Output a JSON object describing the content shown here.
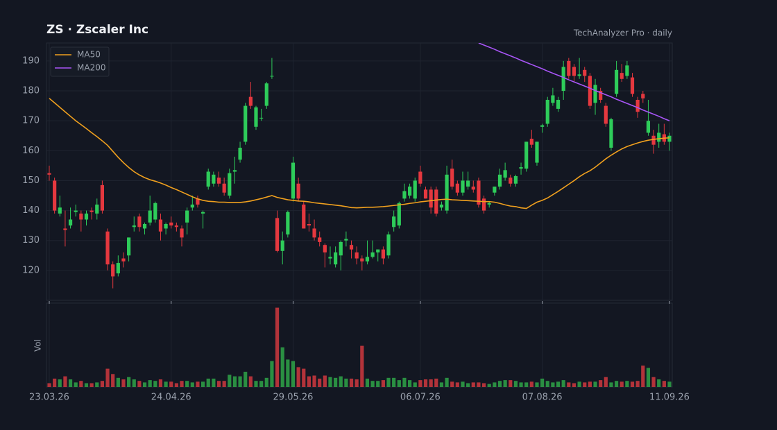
{
  "chart_data": {
    "type": "candlestick",
    "title": "ZS  ·  Zscaler Inc",
    "subtitle": "TechAnalyzer Pro · daily",
    "volume_label": "Vol",
    "categories": [
      "23.03.26",
      null,
      null,
      null,
      null,
      null,
      null,
      null,
      null,
      null,
      null,
      null,
      null,
      null,
      null,
      null,
      null,
      null,
      null,
      null,
      null,
      null,
      null,
      "24.04.26",
      null,
      null,
      null,
      null,
      null,
      null,
      null,
      null,
      null,
      null,
      null,
      null,
      null,
      null,
      null,
      null,
      null,
      null,
      null,
      null,
      null,
      null,
      "29.05.26",
      null,
      null,
      null,
      null,
      null,
      null,
      null,
      null,
      null,
      null,
      null,
      null,
      null,
      null,
      null,
      null,
      null,
      null,
      null,
      null,
      null,
      null,
      null,
      "06.07.26",
      null,
      null,
      null,
      null,
      null,
      null,
      null,
      null,
      null,
      null,
      null,
      null,
      null,
      null,
      null,
      null,
      null,
      null,
      null,
      null,
      null,
      null,
      "07.08.26",
      null,
      null,
      null,
      null,
      null,
      null,
      null,
      null,
      null,
      null,
      null,
      null,
      null,
      null,
      null,
      null,
      null,
      null,
      null,
      null,
      null,
      null,
      null,
      "11.09.26"
    ],
    "open": [
      152.5,
      150,
      139,
      134,
      135,
      139.5,
      139,
      137,
      140,
      139,
      148.5,
      133,
      122,
      119,
      124,
      125,
      134.5,
      138,
      134,
      136,
      137,
      137,
      134,
      136,
      135,
      134,
      136,
      141,
      144,
      139,
      148,
      149,
      151,
      149,
      145,
      153,
      157,
      163,
      178,
      168,
      171,
      175,
      185,
      137.5,
      126.5,
      132,
      144,
      149,
      142,
      135.5,
      134,
      131,
      128.5,
      124,
      122,
      125,
      130,
      128.5,
      126,
      124,
      123,
      124.5,
      126,
      127,
      125,
      134.5,
      135,
      144,
      145,
      144,
      153,
      147,
      147,
      147,
      141,
      140,
      154,
      149,
      146,
      148,
      148,
      150,
      144,
      142,
      146,
      148,
      151,
      151,
      149,
      154,
      154,
      164,
      156,
      168,
      169,
      176,
      174,
      180,
      190,
      188,
      185,
      187,
      185,
      176,
      180,
      175,
      161,
      179,
      186,
      185,
      184.5,
      177,
      179,
      166,
      165,
      163,
      165.5,
      163
    ],
    "high": [
      155,
      151,
      145,
      140,
      141,
      142,
      140,
      140,
      141,
      144,
      150,
      134,
      123,
      125,
      126,
      131,
      138,
      139,
      136,
      145,
      143,
      139,
      136,
      138,
      136,
      135,
      141,
      145,
      145,
      140,
      154,
      153,
      153,
      151,
      154,
      158,
      163,
      176,
      183,
      175,
      174,
      183,
      191,
      140,
      133,
      140,
      158,
      151,
      143,
      139,
      137,
      133,
      129,
      128,
      128,
      130,
      133,
      130,
      128,
      125,
      130,
      130,
      127,
      128,
      133,
      140,
      143,
      149,
      149,
      151,
      155,
      148,
      148,
      148,
      143,
      155,
      157,
      150,
      153,
      153,
      150,
      151,
      145,
      143,
      148,
      154,
      156,
      152,
      152,
      156,
      163,
      167,
      163,
      169,
      178,
      181,
      178,
      190,
      191,
      189,
      191,
      188,
      186,
      184,
      181,
      176,
      171,
      190,
      189,
      190,
      186,
      178,
      180,
      177,
      167,
      169,
      169,
      166
    ],
    "low": [
      150,
      139,
      138,
      128,
      134,
      138,
      133,
      135,
      137,
      137,
      139,
      120,
      114,
      118,
      121,
      123,
      133,
      133,
      132,
      135,
      136,
      130,
      132,
      134,
      133,
      128,
      132,
      140,
      141,
      134,
      147,
      148,
      148,
      145,
      144,
      149,
      156,
      162,
      174,
      167,
      170,
      174,
      184,
      126,
      122,
      131,
      143,
      143,
      134,
      133,
      130,
      128,
      121,
      122,
      121,
      120,
      128,
      124,
      122,
      120,
      122,
      124,
      123,
      122,
      124,
      133,
      134,
      143,
      144,
      143,
      148,
      144,
      139,
      138,
      140,
      139,
      147,
      145,
      145,
      147,
      146,
      141,
      139,
      141,
      145,
      147,
      150,
      148,
      148,
      152,
      153,
      161,
      155,
      166,
      168,
      175,
      173,
      177,
      184,
      183,
      184,
      183,
      174,
      172,
      176,
      168,
      160,
      178,
      183,
      184,
      178,
      171,
      176,
      165,
      159,
      161,
      162,
      160
    ],
    "close": [
      152,
      140,
      141,
      133.5,
      137,
      140,
      137,
      139,
      139.5,
      142,
      140,
      122,
      118,
      122.5,
      123,
      131,
      135,
      134.5,
      135.5,
      140,
      142.5,
      133,
      135.5,
      135,
      134.5,
      131,
      140,
      142,
      142,
      139.5,
      153,
      152,
      149,
      146,
      152.5,
      153.5,
      161,
      175,
      175,
      174.5,
      171,
      182.5,
      185,
      126.5,
      130,
      139.5,
      156,
      144,
      134,
      135,
      131,
      129.5,
      126,
      124.5,
      126,
      129.5,
      130.5,
      127,
      124,
      123,
      124.5,
      126,
      127,
      124,
      132,
      138,
      142.5,
      146.5,
      148,
      150,
      149,
      144,
      141,
      139,
      142,
      152,
      148,
      146,
      150,
      150,
      147,
      142,
      140,
      142.5,
      148,
      152,
      153.5,
      149,
      151.5,
      154.5,
      163,
      162,
      163,
      168.5,
      177,
      178.5,
      177,
      188,
      185,
      185,
      185.5,
      185,
      175,
      182,
      177,
      169,
      170.5,
      187,
      184,
      188.5,
      179,
      173,
      177.5,
      170,
      162,
      166,
      163,
      165
    ],
    "volume": [
      0.5,
      1.1,
      1.0,
      1.4,
      1.0,
      0.6,
      0.8,
      0.5,
      0.5,
      0.6,
      0.8,
      2.4,
      1.7,
      1.2,
      1.0,
      1.3,
      1.0,
      0.8,
      0.6,
      0.9,
      0.8,
      1.0,
      0.7,
      0.7,
      0.5,
      0.8,
      0.8,
      0.6,
      0.7,
      0.7,
      1.1,
      1.1,
      0.8,
      0.8,
      1.6,
      1.4,
      1.4,
      2.0,
      1.4,
      0.8,
      0.8,
      1.2,
      3.4,
      10.4,
      5.2,
      3.6,
      3.4,
      2.6,
      2.4,
      1.4,
      1.5,
      1.1,
      1.5,
      1.3,
      1.2,
      1.4,
      1.1,
      1.1,
      1.0,
      5.4,
      1.1,
      0.8,
      0.8,
      0.9,
      1.2,
      1.2,
      0.9,
      1.2,
      0.9,
      0.6,
      0.9,
      1.0,
      1.0,
      1.1,
      0.6,
      1.2,
      0.7,
      0.6,
      0.7,
      0.5,
      0.6,
      0.6,
      0.5,
      0.4,
      0.6,
      0.8,
      0.9,
      0.9,
      0.8,
      0.6,
      0.6,
      0.7,
      0.6,
      1.1,
      0.8,
      0.6,
      0.7,
      0.9,
      0.6,
      0.5,
      0.7,
      0.6,
      0.7,
      0.7,
      0.9,
      1.3,
      0.6,
      0.8,
      0.7,
      0.8,
      0.7,
      0.8,
      2.8,
      2.5,
      1.3,
      1.0,
      0.8,
      0.7
    ],
    "series": [
      {
        "name": "MA50",
        "color": "#f0a01e",
        "values": [
          177.5,
          176,
          174.5,
          173,
          171.5,
          170,
          168.7,
          167.4,
          166,
          164.7,
          163.3,
          161.8,
          159.8,
          157.8,
          156,
          154.4,
          153,
          151.9,
          151,
          150.3,
          149.8,
          149.2,
          148.5,
          147.7,
          147,
          146.2,
          145.4,
          144.6,
          143.9,
          143.4,
          143.1,
          143,
          142.8,
          142.8,
          142.7,
          142.7,
          142.7,
          142.9,
          143.2,
          143.6,
          144,
          144.5,
          145,
          144.4,
          144,
          143.6,
          143.4,
          143.2,
          143.1,
          142.9,
          142.6,
          142.4,
          142.2,
          142,
          141.8,
          141.6,
          141.3,
          141,
          140.9,
          141,
          141.1,
          141.1,
          141.2,
          141.3,
          141.5,
          141.7,
          141.9,
          142.1,
          142.4,
          142.6,
          142.9,
          143.1,
          143.3,
          143.5,
          143.7,
          143.8,
          143.6,
          143.5,
          143.4,
          143.3,
          143.2,
          143.1,
          143,
          143,
          142.8,
          142.4,
          141.9,
          141.5,
          141.3,
          140.9,
          140.7,
          141.8,
          142.8,
          143.4,
          144.2,
          145.3,
          146.4,
          147.6,
          148.8,
          150,
          151.3,
          152.4,
          153.3,
          154.5,
          155.9,
          157.3,
          158.5,
          159.6,
          160.6,
          161.4,
          162,
          162.6,
          163.1,
          163.5,
          163.8,
          164,
          164.2,
          164.3
        ]
      },
      {
        "name": "MA200",
        "color": "#a855f7",
        "values": [
          null,
          null,
          null,
          null,
          null,
          null,
          null,
          null,
          null,
          null,
          null,
          null,
          null,
          null,
          null,
          null,
          null,
          null,
          null,
          null,
          null,
          null,
          null,
          null,
          null,
          null,
          null,
          null,
          null,
          null,
          null,
          null,
          null,
          null,
          null,
          null,
          null,
          null,
          null,
          null,
          null,
          null,
          null,
          null,
          null,
          null,
          null,
          null,
          null,
          null,
          null,
          null,
          null,
          null,
          null,
          null,
          null,
          null,
          null,
          null,
          null,
          null,
          null,
          null,
          null,
          null,
          null,
          null,
          null,
          null,
          null,
          null,
          null,
          null,
          null,
          null,
          null,
          null,
          null,
          null,
          null,
          196,
          195.3,
          194.6,
          193.9,
          193.1,
          192.4,
          191.7,
          191,
          190.2,
          189.5,
          188.8,
          188.1,
          187.4,
          186.6,
          185.9,
          185.2,
          184.5,
          183.7,
          183,
          182.3,
          181.6,
          180.9,
          180.1,
          179.4,
          178.7,
          178,
          177.2,
          176.5,
          175.8,
          175.1,
          174.4,
          173.6,
          172.9,
          172.2,
          171.5,
          170.7,
          170
        ]
      }
    ],
    "ylim": [
      110,
      196
    ],
    "yticks": [
      120,
      130,
      140,
      150,
      160,
      170,
      180,
      190
    ],
    "vol_ylim": [
      0,
      11
    ],
    "up_color": "#2ecc5a",
    "down_color": "#e5383f",
    "vol_up_color": "#2a8f42",
    "vol_down_color": "#b3333a",
    "grid": true,
    "legend": "upper left"
  }
}
